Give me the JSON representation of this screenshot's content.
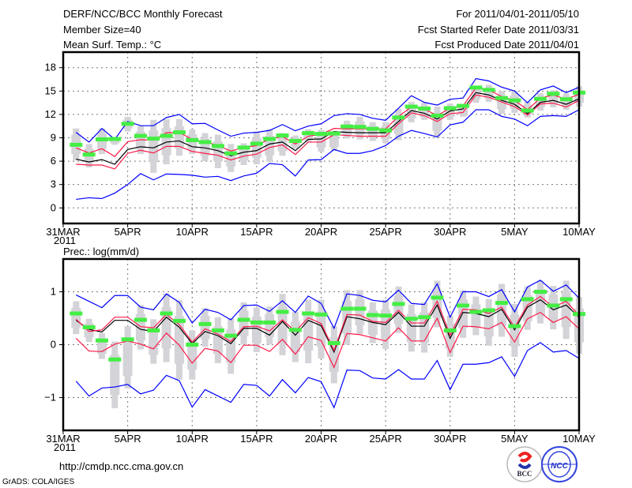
{
  "header": {
    "title": "DERF/NCC/BCC Monthly Forecast",
    "member_size": "Member Size=40",
    "variable": "Mean Surf. Temp.: °C",
    "period": "For 2011/04/01-2011/05/10",
    "started": "Fcst Started Refer Date 2011/03/31",
    "produced": "Fcst Produced Date 2011/04/01"
  },
  "footer": {
    "url": "http://cmdp.ncc.cma.gov.cn",
    "credit": "GrADS: COLA/IGES",
    "logo_bcc": "BCC",
    "logo_ncc": "NCC"
  },
  "colors": {
    "mean": "#000000",
    "spread": "#ff1a4a",
    "envelope": "#0000ff",
    "observed": "#44ee44",
    "members": "#d3d3d8"
  },
  "chart_data": [
    {
      "type": "line",
      "title": "Mean Surf. Temp.: °C",
      "xlabel": "",
      "ylabel": "",
      "x_tick_labels": [
        "31MAR",
        "5APR",
        "10APR",
        "15APR",
        "20APR",
        "25APR",
        "30APR",
        "5MAY",
        "10MAY"
      ],
      "x_tick_days": [
        0,
        5,
        10,
        15,
        20,
        25,
        30,
        35,
        40
      ],
      "year_label": "2011",
      "xlim": [
        0,
        40
      ],
      "ylim": [
        -2,
        20
      ],
      "y_ticks": [
        0,
        3,
        6,
        9,
        12,
        15,
        18
      ],
      "grid": true,
      "x": [
        1,
        2,
        3,
        4,
        5,
        6,
        7,
        8,
        9,
        10,
        11,
        12,
        13,
        14,
        15,
        16,
        17,
        18,
        19,
        20,
        21,
        22,
        23,
        24,
        25,
        26,
        27,
        28,
        29,
        30,
        31,
        32,
        33,
        34,
        35,
        36,
        37,
        38,
        39,
        40
      ],
      "series": [
        {
          "name": "ensemble mean",
          "color_key": "mean",
          "values": [
            6.26,
            5.9,
            6.2,
            5.6,
            7.5,
            7.85,
            7.7,
            8.45,
            8.6,
            7.85,
            7.7,
            7.35,
            6.7,
            7.15,
            7.35,
            8.2,
            8.45,
            7.35,
            8.8,
            8.85,
            9.8,
            9.7,
            9.65,
            9.65,
            9.65,
            11.1,
            12.5,
            12.15,
            11.4,
            12.45,
            12.7,
            14.8,
            14.5,
            13.8,
            13.3,
            12.1,
            13.55,
            13.8,
            13.3,
            14.0
          ]
        },
        {
          "name": "upper spread",
          "color_key": "spread",
          "values": [
            7.7,
            7.05,
            7.6,
            6.6,
            8.5,
            8.75,
            8.7,
            9.65,
            9.7,
            8.8,
            8.5,
            8.0,
            7.3,
            7.75,
            8.0,
            8.85,
            9.15,
            8.2,
            9.2,
            9.45,
            10.2,
            10.15,
            10.15,
            10.15,
            10.15,
            11.75,
            12.95,
            12.7,
            11.85,
            12.8,
            13.1,
            15.4,
            15.15,
            14.3,
            13.8,
            12.6,
            14.1,
            14.5,
            13.95,
            14.6
          ]
        },
        {
          "name": "lower spread",
          "color_key": "spread",
          "values": [
            5.6,
            5.5,
            5.5,
            5.0,
            7.0,
            7.4,
            7.05,
            7.9,
            7.9,
            7.25,
            7.0,
            6.75,
            6.15,
            6.65,
            6.9,
            7.75,
            8.1,
            6.85,
            8.45,
            8.45,
            9.4,
            9.3,
            9.2,
            9.2,
            9.2,
            10.8,
            12.2,
            11.85,
            11.1,
            12.1,
            12.25,
            14.5,
            14.2,
            13.6,
            13.0,
            11.9,
            13.35,
            13.45,
            12.95,
            13.8
          ]
        },
        {
          "name": "maximum",
          "color_key": "envelope",
          "values": [
            9.7,
            8.45,
            10.2,
            8.8,
            11.1,
            10.55,
            10.55,
            11.6,
            12.0,
            10.8,
            10.85,
            10.0,
            9.2,
            9.6,
            9.7,
            9.95,
            10.7,
            9.9,
            10.5,
            10.8,
            11.85,
            12.1,
            12.0,
            11.5,
            11.25,
            12.8,
            14.4,
            13.55,
            13.2,
            13.95,
            14.1,
            16.6,
            16.3,
            15.5,
            15.0,
            13.5,
            15.15,
            15.65,
            14.8,
            15.5
          ]
        },
        {
          "name": "minimum",
          "color_key": "envelope",
          "values": [
            1.1,
            1.3,
            1.2,
            1.9,
            3.0,
            4.4,
            3.6,
            4.35,
            4.3,
            4.2,
            3.95,
            4.05,
            3.5,
            4.1,
            4.45,
            5.7,
            5.55,
            4.1,
            6.15,
            6.2,
            7.5,
            7.0,
            7.0,
            7.35,
            8.0,
            9.2,
            9.95,
            9.55,
            9.1,
            10.65,
            11.0,
            12.6,
            12.6,
            11.75,
            11.4,
            10.55,
            11.75,
            11.85,
            11.75,
            12.6
          ]
        }
      ],
      "observed": [
        8.1,
        6.85,
        8.8,
        8.85,
        10.8,
        9.25,
        8.9,
        9.25,
        9.7,
        8.7,
        8.45,
        7.95,
        7.0,
        7.75,
        8.25,
        8.85,
        9.3,
        8.6,
        9.6,
        9.5,
        9.55,
        10.45,
        10.4,
        10.15,
        9.95,
        11.6,
        13.0,
        12.75,
        11.85,
        12.8,
        13.1,
        15.45,
        15.15,
        14.1,
        13.8,
        12.5,
        14.0,
        14.65,
        13.95,
        14.8
      ],
      "member_range": [
        [
          6.1,
          10.2
        ],
        [
          5.2,
          8.2
        ],
        [
          6.9,
          10.2
        ],
        [
          8.1,
          9.1
        ],
        [
          9.8,
          11.7
        ],
        [
          6.9,
          10.5
        ],
        [
          4.5,
          11.3
        ],
        [
          5.6,
          11.4
        ],
        [
          6.7,
          11.4
        ],
        [
          6.9,
          10.1
        ],
        [
          6.0,
          9.6
        ],
        [
          5.1,
          9.4
        ],
        [
          4.6,
          8.2
        ],
        [
          5.5,
          8.3
        ],
        [
          5.6,
          9.8
        ],
        [
          5.9,
          10.1
        ],
        [
          6.7,
          9.6
        ],
        [
          7.6,
          9.3
        ],
        [
          8.4,
          10.1
        ],
        [
          7.2,
          10.0
        ],
        [
          7.3,
          9.9
        ],
        [
          8.9,
          11.2
        ],
        [
          8.8,
          11.7
        ],
        [
          8.6,
          11.0
        ],
        [
          8.3,
          11.0
        ],
        [
          8.7,
          12.7
        ],
        [
          11.0,
          13.6
        ],
        [
          11.3,
          13.5
        ],
        [
          9.1,
          13.0
        ],
        [
          11.3,
          13.4
        ],
        [
          11.7,
          13.2
        ],
        [
          13.5,
          15.7
        ],
        [
          13.6,
          15.8
        ],
        [
          12.1,
          15.0
        ],
        [
          12.2,
          15.0
        ],
        [
          11.6,
          13.6
        ],
        [
          12.5,
          14.7
        ],
        [
          12.9,
          15.1
        ],
        [
          12.6,
          14.7
        ],
        [
          13.0,
          15.6
        ]
      ]
    },
    {
      "type": "line",
      "title": "Prec.: log(mm/d)",
      "xlabel": "",
      "ylabel": "",
      "x_tick_labels": [
        "31MAR",
        "5APR",
        "10APR",
        "15APR",
        "20APR",
        "25APR",
        "30APR",
        "5MAY",
        "10MAY"
      ],
      "x_tick_days": [
        0,
        5,
        10,
        15,
        20,
        25,
        30,
        35,
        40
      ],
      "year_label": "2011",
      "xlim": [
        0,
        40
      ],
      "ylim": [
        -1.62,
        1.62
      ],
      "y_ticks": [
        -1,
        0,
        1
      ],
      "grid": true,
      "x": [
        1,
        2,
        3,
        4,
        5,
        6,
        7,
        8,
        9,
        10,
        11,
        12,
        13,
        14,
        15,
        16,
        17,
        18,
        19,
        20,
        21,
        22,
        23,
        24,
        25,
        26,
        27,
        28,
        29,
        30,
        31,
        32,
        33,
        34,
        35,
        36,
        37,
        38,
        39,
        40
      ],
      "series": [
        {
          "name": "ensemble mean",
          "color_key": "mean",
          "values": [
            0.46,
            0.29,
            0.24,
            0.46,
            0.46,
            0.29,
            0.25,
            0.52,
            0.33,
            0.02,
            0.25,
            0.17,
            0.02,
            0.31,
            0.31,
            0.18,
            0.44,
            0.18,
            0.46,
            0.36,
            -0.14,
            0.53,
            0.49,
            0.42,
            0.38,
            0.61,
            0.35,
            0.35,
            0.75,
            0.12,
            0.61,
            0.59,
            0.53,
            0.67,
            0.28,
            0.71,
            0.85,
            0.66,
            0.75,
            0.52
          ]
        },
        {
          "name": "upper spread",
          "color_key": "spread",
          "values": [
            0.48,
            0.25,
            0.28,
            0.52,
            0.52,
            0.34,
            0.32,
            0.57,
            0.38,
            0.05,
            0.3,
            0.2,
            0.06,
            0.34,
            0.35,
            0.26,
            0.47,
            0.25,
            0.51,
            0.4,
            -0.11,
            0.57,
            0.56,
            0.44,
            0.42,
            0.65,
            0.41,
            0.41,
            0.82,
            0.18,
            0.67,
            0.66,
            0.59,
            0.71,
            0.33,
            0.75,
            0.91,
            0.71,
            0.82,
            0.55
          ]
        },
        {
          "name": "lower spread",
          "color_key": "spread",
          "values": [
            0.12,
            -0.12,
            -0.13,
            0.01,
            0.07,
            0.01,
            -0.08,
            0.22,
            -0.01,
            -0.35,
            -0.07,
            -0.12,
            -0.34,
            -0.01,
            -0.01,
            -0.13,
            0.1,
            -0.18,
            0.15,
            0.08,
            -0.43,
            0.21,
            0.19,
            0.13,
            0.07,
            0.32,
            0.07,
            0.07,
            0.5,
            -0.15,
            0.35,
            0.34,
            0.3,
            0.42,
            0.05,
            0.49,
            0.61,
            0.42,
            0.53,
            0.3
          ]
        },
        {
          "name": "maximum",
          "color_key": "envelope",
          "values": [
            0.94,
            0.82,
            0.7,
            0.93,
            0.93,
            0.71,
            0.66,
            0.96,
            0.8,
            0.41,
            0.67,
            0.61,
            0.47,
            0.74,
            0.75,
            0.63,
            0.83,
            0.61,
            0.92,
            0.78,
            0.31,
            0.96,
            0.93,
            0.84,
            0.81,
            1.03,
            0.78,
            0.76,
            1.15,
            0.52,
            1.0,
            1.0,
            0.91,
            1.04,
            0.62,
            1.09,
            1.22,
            1.01,
            1.13,
            0.88
          ]
        },
        {
          "name": "minimum",
          "color_key": "envelope",
          "values": [
            -0.69,
            -0.97,
            -0.82,
            -0.8,
            -0.75,
            -0.93,
            -0.86,
            -0.58,
            -0.68,
            -1.18,
            -0.85,
            -0.97,
            -1.09,
            -0.75,
            -0.77,
            -0.97,
            -0.66,
            -0.91,
            -0.62,
            -0.7,
            -1.19,
            -0.48,
            -0.49,
            -0.63,
            -0.65,
            -0.47,
            -0.65,
            -0.65,
            -0.3,
            -0.85,
            -0.37,
            -0.37,
            -0.34,
            -0.23,
            -0.6,
            -0.11,
            0.04,
            -0.14,
            -0.11,
            -0.26
          ]
        }
      ],
      "observed": [
        0.59,
        0.33,
        0.08,
        -0.28,
        0.1,
        0.47,
        0.27,
        0.59,
        0.45,
        0.0,
        0.39,
        0.27,
        0.17,
        0.47,
        0.42,
        0.42,
        0.62,
        0.28,
        0.59,
        0.57,
        0.03,
        0.68,
        0.68,
        0.56,
        0.55,
        0.77,
        0.49,
        0.52,
        0.89,
        0.27,
        0.74,
        0.62,
        0.65,
        0.79,
        0.35,
        0.86,
        1.0,
        0.74,
        0.86,
        0.58
      ],
      "member_range": [
        [
          0.2,
          0.82
        ],
        [
          0.05,
          0.49
        ],
        [
          -0.27,
          0.22
        ],
        [
          -1.2,
          0.06
        ],
        [
          -0.83,
          0.35
        ],
        [
          -0.09,
          0.75
        ],
        [
          -0.36,
          0.48
        ],
        [
          -0.33,
          0.97
        ],
        [
          -0.66,
          0.84
        ],
        [
          -0.66,
          0.27
        ],
        [
          -0.04,
          0.69
        ],
        [
          -0.35,
          0.52
        ],
        [
          -0.55,
          0.5
        ],
        [
          0.0,
          0.8
        ],
        [
          -0.14,
          0.7
        ],
        [
          0.0,
          0.72
        ],
        [
          -0.2,
          0.96
        ],
        [
          -0.33,
          0.62
        ],
        [
          -0.35,
          0.85
        ],
        [
          -0.26,
          0.85
        ],
        [
          -0.73,
          0.35
        ],
        [
          0.0,
          1.03
        ],
        [
          0.2,
          1.03
        ],
        [
          0.03,
          0.8
        ],
        [
          -0.08,
          0.85
        ],
        [
          0.22,
          1.1
        ],
        [
          -0.13,
          0.76
        ],
        [
          -0.15,
          0.8
        ],
        [
          0.33,
          1.21
        ],
        [
          -0.23,
          0.55
        ],
        [
          0.13,
          1.03
        ],
        [
          0.18,
          0.91
        ],
        [
          -0.02,
          0.86
        ],
        [
          0.15,
          1.15
        ],
        [
          -0.23,
          0.77
        ],
        [
          0.28,
          1.1
        ],
        [
          0.4,
          1.21
        ],
        [
          0.29,
          1.11
        ],
        [
          0.11,
          1.21
        ],
        [
          -0.17,
          0.9
        ]
      ]
    }
  ]
}
